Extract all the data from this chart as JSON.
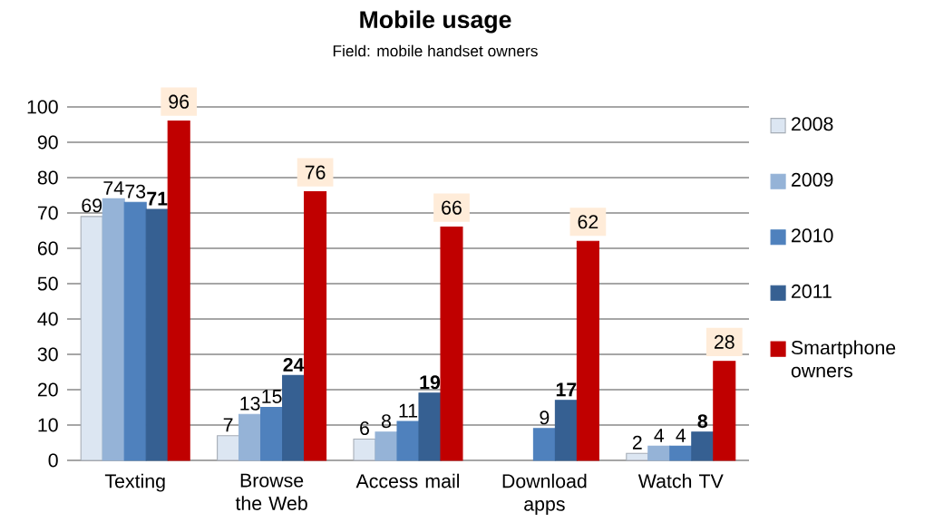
{
  "chart_data": {
    "type": "bar",
    "title": "Mobile usage",
    "subtitle": "Field: mobile handset owners",
    "categories": [
      "Texting",
      "Browse the Web",
      "Access mail",
      "Download apps",
      "Watch TV"
    ],
    "series": [
      {
        "name": "2008",
        "color": "#dce6f2",
        "values": [
          69,
          7,
          6,
          null,
          2
        ]
      },
      {
        "name": "2009",
        "color": "#95b3d7",
        "values": [
          74,
          13,
          8,
          null,
          4
        ]
      },
      {
        "name": "2010",
        "color": "#4f81bd",
        "values": [
          73,
          15,
          11,
          9,
          4
        ]
      },
      {
        "name": "2011",
        "color": "#366092",
        "values": [
          71,
          24,
          19,
          17,
          8
        ]
      },
      {
        "name": "Smartphone owners",
        "color": "#c00000",
        "values": [
          96,
          76,
          66,
          62,
          28
        ]
      }
    ],
    "ylim": [
      0,
      100
    ],
    "yticks": [
      0,
      10,
      20,
      30,
      40,
      50,
      60,
      70,
      80,
      90,
      100
    ],
    "grid": "y",
    "legend": "right",
    "data_labels": true
  }
}
